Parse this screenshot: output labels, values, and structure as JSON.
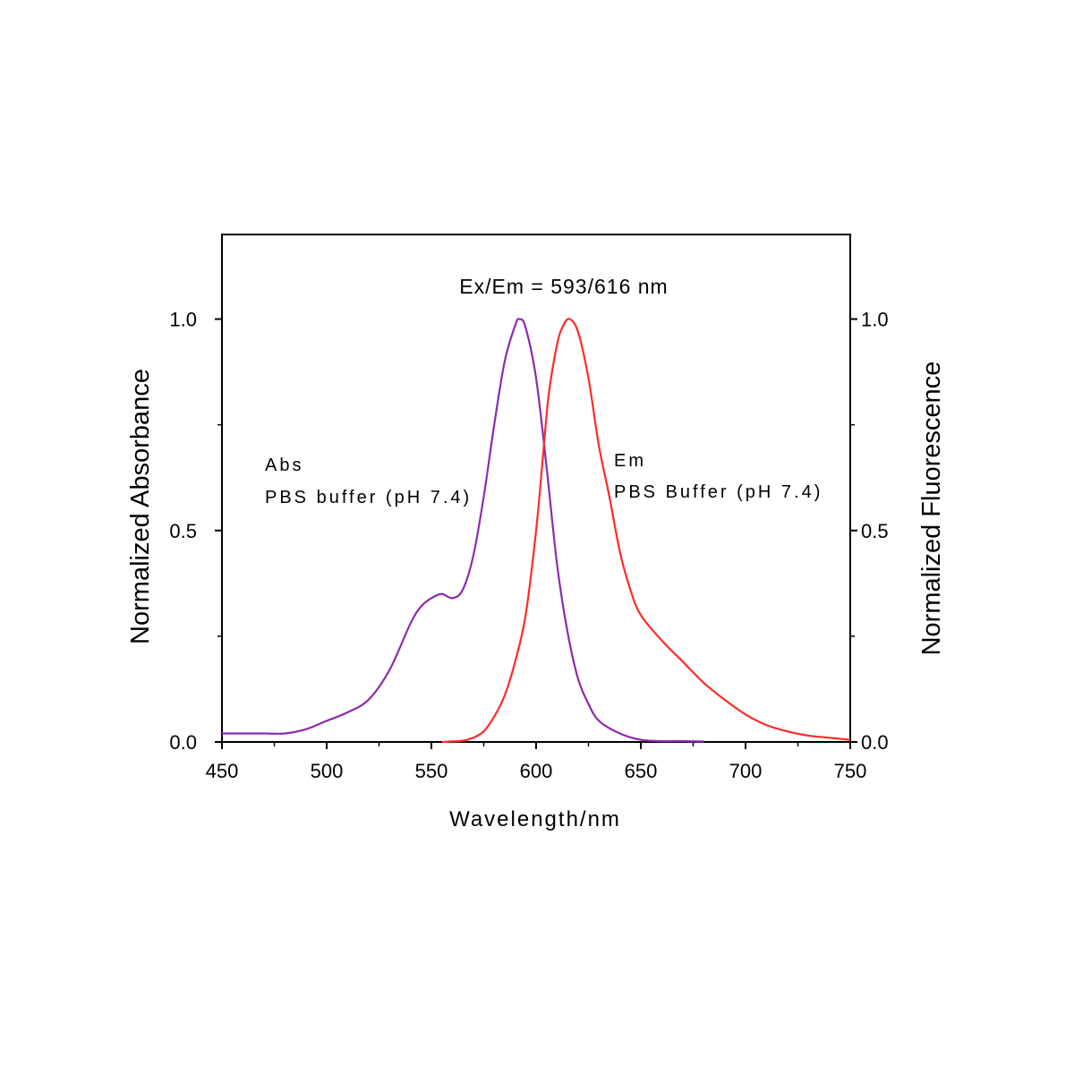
{
  "chart_data": {
    "type": "line",
    "title": "Ex/Em = 593/616 nm",
    "xlabel": "Wavelength/nm",
    "ylabel": "Normalized Absorbance",
    "ylabel_right": "Normalized Fluorescence",
    "xlim": [
      450,
      750
    ],
    "ylim": [
      0,
      1.2
    ],
    "x_ticks": [
      450,
      500,
      550,
      600,
      650,
      700,
      750
    ],
    "x_tick_labels": [
      "450",
      "500",
      "550",
      "600",
      "650",
      "700",
      "750"
    ],
    "y_ticks": [
      0,
      0.5,
      1
    ],
    "y_tick_labels": [
      "0.0",
      "0.5",
      "1.0"
    ],
    "y_right_tick_labels": [
      "0.0",
      "0.5",
      "1.0"
    ],
    "grid": false,
    "annotations": [
      {
        "id": "abs_name",
        "text": "Abs"
      },
      {
        "id": "abs_buffer",
        "text": "PBS buffer (pH 7.4)"
      },
      {
        "id": "em_name",
        "text": "Em"
      },
      {
        "id": "em_buffer",
        "text": "PBS Buffer (pH 7.4)"
      }
    ],
    "series": [
      {
        "id": "abs",
        "color": "#8B2BB0",
        "x": [
          450,
          470,
          480,
          490,
          500,
          510,
          520,
          530,
          540,
          545,
          550,
          555,
          560,
          565,
          570,
          575,
          580,
          585,
          590,
          592,
          595,
          600,
          605,
          610,
          615,
          620,
          625,
          630,
          640,
          650,
          660,
          670,
          680
        ],
        "y": [
          0.02,
          0.02,
          0.02,
          0.03,
          0.05,
          0.07,
          0.1,
          0.17,
          0.28,
          0.32,
          0.34,
          0.35,
          0.34,
          0.36,
          0.44,
          0.58,
          0.75,
          0.9,
          0.985,
          1.0,
          0.98,
          0.86,
          0.65,
          0.42,
          0.26,
          0.15,
          0.09,
          0.05,
          0.02,
          0.005,
          0.002,
          0.002,
          0.001
        ]
      },
      {
        "id": "em",
        "color": "#FF2A2A",
        "x": [
          555,
          565,
          570,
          575,
          580,
          585,
          590,
          595,
          600,
          603,
          606,
          610,
          613,
          616,
          620,
          625,
          630,
          635,
          640,
          645,
          650,
          660,
          670,
          680,
          690,
          700,
          710,
          720,
          730,
          740,
          750
        ],
        "y": [
          0.0,
          0.003,
          0.01,
          0.025,
          0.06,
          0.11,
          0.19,
          0.3,
          0.5,
          0.66,
          0.82,
          0.94,
          0.985,
          1.0,
          0.97,
          0.86,
          0.7,
          0.58,
          0.45,
          0.36,
          0.3,
          0.24,
          0.19,
          0.14,
          0.1,
          0.065,
          0.04,
          0.025,
          0.015,
          0.01,
          0.005
        ]
      }
    ]
  }
}
